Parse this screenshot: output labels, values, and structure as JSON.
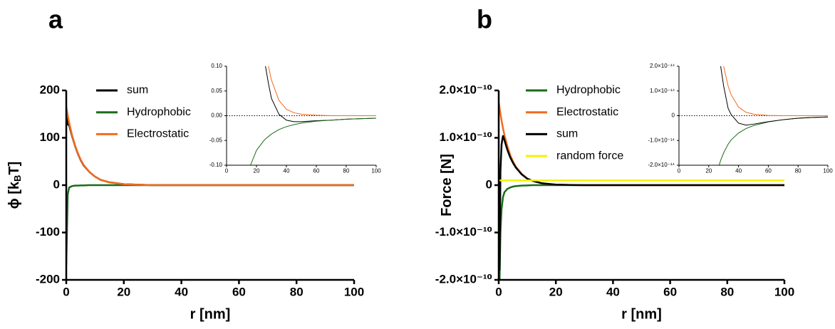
{
  "chart_data": [
    {
      "type": "line",
      "panel_label": "a",
      "xlabel": "r [nm]",
      "ylabel": [
        "ϕ [k",
        "B",
        "T]"
      ],
      "xlim": [
        0,
        100
      ],
      "xticks": [
        0,
        20,
        40,
        60,
        80,
        100
      ],
      "ylim": [
        -200,
        200
      ],
      "yticks": [
        -200,
        -100,
        0,
        100,
        200
      ],
      "legend": true,
      "x": [
        0,
        0.5,
        1,
        2,
        3,
        4,
        5,
        6,
        8,
        10,
        12,
        15,
        20,
        25,
        30,
        40,
        50,
        60,
        70,
        80,
        90,
        100
      ],
      "series": [
        {
          "name": "sum",
          "color": "#000000",
          "values": [
            150,
            128,
            127,
            104,
            84,
            67,
            53,
            42,
            28,
            18,
            11,
            6,
            2,
            1,
            0,
            0,
            0,
            0,
            0,
            0,
            0,
            0
          ]
        },
        {
          "name": "Hydrophobic",
          "color": "#1a6b1a",
          "values": [
            -170,
            -20,
            -5,
            -2,
            -1,
            -1,
            -0.5,
            -0.5,
            0,
            0,
            0,
            0,
            0,
            0,
            0,
            0,
            0,
            0,
            0,
            0,
            0,
            0
          ]
        },
        {
          "name": "Electrostatic",
          "color": "#f26b1d",
          "values": [
            165,
            148,
            132,
            106,
            85,
            68,
            54,
            43,
            28,
            18,
            11,
            6,
            2,
            1,
            0,
            0,
            0,
            0,
            0,
            0,
            0,
            0
          ]
        }
      ]
    },
    {
      "type": "line",
      "zero_line": true,
      "xlim": [
        0,
        100
      ],
      "xticks": [
        0,
        20,
        40,
        60,
        80,
        100
      ],
      "ylim": [
        -0.1,
        0.1
      ],
      "yticks": [
        {
          "value": -0.1,
          "label": "-0.10"
        },
        {
          "value": -0.05,
          "label": "-0.05"
        },
        {
          "value": 0,
          "label": "0.00"
        },
        {
          "value": 0.05,
          "label": "0.05"
        },
        {
          "value": 0.1,
          "label": "0.10"
        }
      ],
      "x": [
        16,
        20,
        25,
        26,
        28,
        30,
        35,
        40,
        45,
        50,
        60,
        70,
        80,
        90,
        100
      ],
      "series": [
        {
          "color": "#000000",
          "values": [
            null,
            null,
            null,
            0.1,
            0.065,
            0.035,
            0.003,
            -0.009,
            -0.012,
            -0.012,
            -0.01,
            -0.009,
            -0.007,
            -0.006,
            -0.005
          ]
        },
        {
          "color": "#1a6b1a",
          "values": [
            -0.1,
            -0.07,
            -0.05,
            -0.047,
            -0.042,
            -0.037,
            -0.028,
            -0.022,
            -0.018,
            -0.015,
            -0.011,
            -0.009,
            -0.007,
            -0.006,
            -0.005
          ]
        },
        {
          "color": "#f26b1d",
          "values": [
            null,
            null,
            null,
            null,
            0.1,
            0.072,
            0.031,
            0.013,
            0.006,
            0.003,
            0.001,
            0,
            0,
            0,
            0
          ]
        }
      ]
    },
    {
      "type": "line",
      "panel_label": "b",
      "xlabel": "r [nm]",
      "ylabel": [
        "Force [N]"
      ],
      "xlim": [
        0,
        100
      ],
      "xticks": [
        0,
        20,
        40,
        60,
        80,
        100
      ],
      "ylim": [
        -2e-10,
        2e-10
      ],
      "yticks": [
        {
          "value": -2e-10,
          "label": "-2.0×10⁻¹⁰"
        },
        {
          "value": -1e-10,
          "label": "-1.0×10⁻¹⁰"
        },
        0,
        {
          "value": 1e-10,
          "label": "1.0×10⁻¹⁰"
        },
        {
          "value": 2e-10,
          "label": "2.0×10⁻¹⁰"
        }
      ],
      "legend": true,
      "x": [
        0,
        0.3,
        0.6,
        1,
        1.5,
        2,
        3,
        4,
        5,
        6,
        8,
        10,
        12,
        15,
        20,
        25,
        30,
        40,
        60,
        80,
        100
      ],
      "series": [
        {
          "name": "Hydrophobic",
          "color": "#1a6b1a",
          "values": [
            null,
            -2e-10,
            -1e-10,
            -5e-11,
            -2.5e-11,
            -1.5e-11,
            -8e-12,
            -5e-12,
            -3e-12,
            -2e-12,
            -1e-12,
            -5e-13,
            0,
            0,
            0,
            0,
            0,
            0,
            0,
            0,
            0
          ]
        },
        {
          "name": "Electrostatic",
          "color": "#f26b1d",
          "values": [
            1.75e-10,
            1.63e-10,
            1.51e-10,
            1.36e-10,
            1.2e-10,
            1.06e-10,
            8.3e-11,
            6.4e-11,
            5e-11,
            3.9e-11,
            2.4e-11,
            1.4e-11,
            8.7e-12,
            4.1e-12,
            1.2e-12,
            3e-13,
            0,
            0,
            0,
            0,
            0
          ]
        },
        {
          "name": "sum",
          "color": "#000000",
          "values": [
            null,
            -1.8e-10,
            3e-11,
            8.6e-11,
            1.05e-10,
            9.5e-11,
            7.5e-11,
            5.9e-11,
            4.7e-11,
            3.7e-11,
            2.3e-11,
            1.35e-11,
            8.7e-12,
            4.1e-12,
            1.2e-12,
            3e-13,
            0,
            0,
            0,
            0,
            0
          ]
        },
        {
          "name": "random force",
          "color": "#f2f20a",
          "values": [
            1e-11,
            1e-11,
            1e-11,
            1e-11,
            1e-11,
            1e-11,
            1e-11,
            1e-11,
            1e-11,
            1e-11,
            1e-11,
            1e-11,
            1e-11,
            1e-11,
            1e-11,
            1e-11,
            1e-11,
            1e-11,
            1e-11,
            1e-11,
            1e-11
          ]
        }
      ]
    },
    {
      "type": "line",
      "zero_line": true,
      "xlim": [
        0,
        100
      ],
      "xticks": [
        0,
        20,
        40,
        60,
        80,
        100
      ],
      "ylim": [
        -2e-14,
        2e-14
      ],
      "yticks": [
        {
          "value": -2e-14,
          "label": "-2.0×10⁻¹⁴"
        },
        {
          "value": -1e-14,
          "label": "-1.0×10⁻¹⁴"
        },
        0,
        {
          "value": 1e-14,
          "label": "1.0×10⁻¹⁴"
        },
        {
          "value": 2e-14,
          "label": "2.0×10⁻¹⁴"
        }
      ],
      "x": [
        27,
        28,
        30,
        33,
        35,
        40,
        45,
        50,
        60,
        70,
        80,
        90,
        100
      ],
      "series": [
        {
          "color": "#1a6b1a",
          "values": [
            -2e-14,
            -1.8e-14,
            -1.5e-14,
            -1.15e-14,
            -9.8e-15,
            -7e-15,
            -5.2e-15,
            -4e-15,
            -2.5e-15,
            -1.6e-15,
            -1e-15,
            -7e-16,
            -5e-16
          ]
        },
        {
          "color": "#f26b1d",
          "values": [
            null,
            null,
            2e-14,
            1.2e-14,
            8.5e-15,
            3.5e-15,
            1.4e-15,
            6e-16,
            1e-16,
            0,
            0,
            0,
            0
          ]
        },
        {
          "color": "#000000",
          "values": [
            null,
            2e-14,
            1.2e-14,
            3e-15,
            5e-16,
            -3e-15,
            -3.8e-15,
            -3.4e-15,
            -2.4e-15,
            -1.6e-15,
            -1e-15,
            -7e-16,
            -5e-16
          ]
        }
      ]
    }
  ]
}
